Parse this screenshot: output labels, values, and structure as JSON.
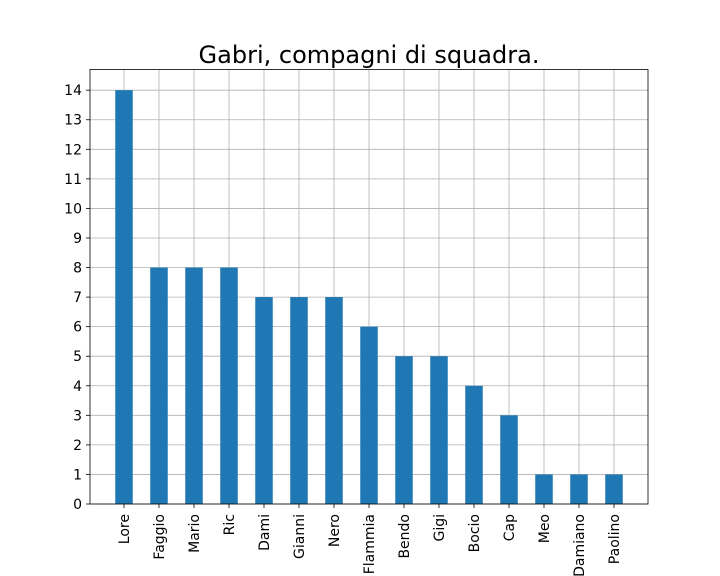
{
  "chart_data": {
    "type": "bar",
    "title": "Gabri, compagni di squadra.",
    "xlabel": "",
    "ylabel": "",
    "categories": [
      "Lore",
      "Faggio",
      "Mario",
      "Ric",
      "Dami",
      "Gianni",
      "Nero",
      "Flammia",
      "Bendo",
      "Gigi",
      "Bocio",
      "Cap",
      "Meo",
      "Damiano",
      "Paolino"
    ],
    "values": [
      14,
      8,
      8,
      8,
      7,
      7,
      7,
      6,
      5,
      5,
      4,
      3,
      1,
      1,
      1
    ],
    "ylim": [
      0,
      14.7
    ],
    "yticks": [
      0,
      1,
      2,
      3,
      4,
      5,
      6,
      7,
      8,
      9,
      10,
      11,
      12,
      13,
      14
    ],
    "grid": true,
    "bar_color": "#1f77b4"
  }
}
